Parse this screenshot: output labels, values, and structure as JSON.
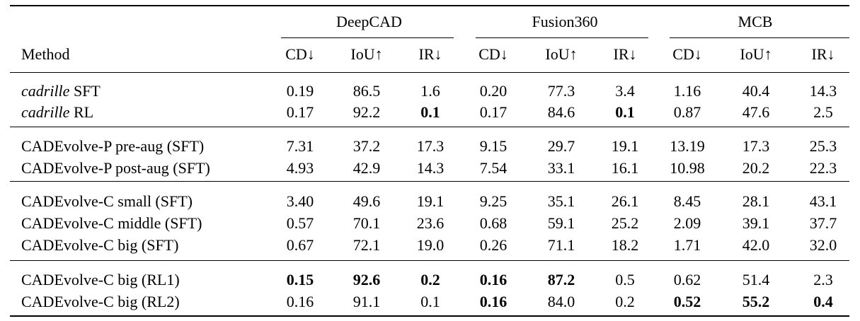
{
  "table": {
    "groups": [
      "DeepCAD",
      "Fusion360",
      "MCB"
    ],
    "method_header": "Method",
    "metric_headers": [
      "CD↓",
      "IoU↑",
      "IR↓",
      "CD↓",
      "IoU↑",
      "IR↓",
      "CD↓",
      "IoU↑",
      "IR↓"
    ],
    "rows": [
      {
        "method_italic": "cadrille",
        "method_rest": " SFT",
        "values": [
          "0.19",
          "86.5",
          "1.6",
          "0.20",
          "77.3",
          "3.4",
          "1.16",
          "40.4",
          "14.3"
        ],
        "bold": []
      },
      {
        "method_italic": "cadrille",
        "method_rest": " RL",
        "values": [
          "0.17",
          "92.2",
          "0.1",
          "0.17",
          "84.6",
          "0.1",
          "0.87",
          "47.6",
          "2.5"
        ],
        "bold": [
          2,
          5
        ]
      },
      {
        "method_italic": "",
        "method_rest": "CADEvolve-P pre-aug (SFT)",
        "values": [
          "7.31",
          "37.2",
          "17.3",
          "9.15",
          "29.7",
          "19.1",
          "13.19",
          "17.3",
          "25.3"
        ],
        "bold": []
      },
      {
        "method_italic": "",
        "method_rest": "CADEvolve-P post-aug (SFT)",
        "values": [
          "4.93",
          "42.9",
          "14.3",
          "7.54",
          "33.1",
          "16.1",
          "10.98",
          "20.2",
          "22.3"
        ],
        "bold": []
      },
      {
        "method_italic": "",
        "method_rest": "CADEvolve-C small (SFT)",
        "values": [
          "3.40",
          "49.6",
          "19.1",
          "9.25",
          "35.1",
          "26.1",
          "8.45",
          "28.1",
          "43.1"
        ],
        "bold": []
      },
      {
        "method_italic": "",
        "method_rest": "CADEvolve-C middle (SFT)",
        "values": [
          "0.57",
          "70.1",
          "23.6",
          "0.68",
          "59.1",
          "25.2",
          "2.09",
          "39.1",
          "37.7"
        ],
        "bold": []
      },
      {
        "method_italic": "",
        "method_rest": "CADEvolve-C big (SFT)",
        "values": [
          "0.67",
          "72.1",
          "19.0",
          "0.26",
          "71.1",
          "18.2",
          "1.71",
          "42.0",
          "32.0"
        ],
        "bold": []
      },
      {
        "method_italic": "",
        "method_rest": "CADEvolve-C big (RL1)",
        "values": [
          "0.15",
          "92.6",
          "0.2",
          "0.16",
          "87.2",
          "0.5",
          "0.62",
          "51.4",
          "2.3"
        ],
        "bold": [
          0,
          1,
          2,
          3,
          4
        ]
      },
      {
        "method_italic": "",
        "method_rest": "CADEvolve-C big (RL2)",
        "values": [
          "0.16",
          "91.1",
          "0.1",
          "0.16",
          "84.0",
          "0.2",
          "0.52",
          "55.2",
          "0.4"
        ],
        "bold": [
          3,
          6,
          7,
          8
        ]
      }
    ]
  }
}
